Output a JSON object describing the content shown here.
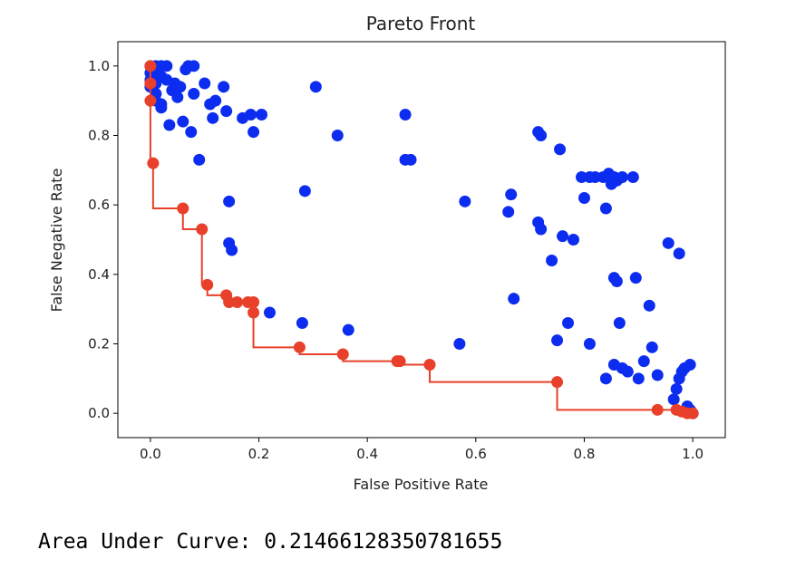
{
  "chart_data": {
    "type": "scatter",
    "title": "Pareto Front",
    "xlabel": "False Positive Rate",
    "ylabel": "False Negative Rate",
    "xlim": [
      -0.06,
      1.06
    ],
    "ylim": [
      -0.07,
      1.07
    ],
    "xticks": [
      0.0,
      0.2,
      0.4,
      0.6,
      0.8,
      1.0
    ],
    "yticks": [
      0.0,
      0.2,
      0.4,
      0.6,
      0.8,
      1.0
    ],
    "xtick_labels": [
      "0.0",
      "0.2",
      "0.4",
      "0.6",
      "0.8",
      "1.0"
    ],
    "ytick_labels": [
      "0.0",
      "0.2",
      "0.4",
      "0.6",
      "0.8",
      "1.0"
    ],
    "grid": false,
    "series": [
      {
        "color": "#0c2df0",
        "kind": "scatter",
        "points": [
          [
            0.0,
            1.0
          ],
          [
            0.0,
            0.98
          ],
          [
            0.0,
            0.96
          ],
          [
            0.0,
            0.94
          ],
          [
            0.01,
            1.0
          ],
          [
            0.01,
            0.98
          ],
          [
            0.01,
            0.95
          ],
          [
            0.01,
            0.92
          ],
          [
            0.01,
            0.9
          ],
          [
            0.02,
            1.0
          ],
          [
            0.02,
            0.97
          ],
          [
            0.02,
            0.89
          ],
          [
            0.02,
            0.88
          ],
          [
            0.03,
            1.0
          ],
          [
            0.03,
            0.96
          ],
          [
            0.035,
            0.83
          ],
          [
            0.04,
            0.93
          ],
          [
            0.045,
            0.95
          ],
          [
            0.05,
            0.91
          ],
          [
            0.055,
            0.94
          ],
          [
            0.06,
            0.84
          ],
          [
            0.065,
            0.99
          ],
          [
            0.07,
            1.0
          ],
          [
            0.075,
            0.81
          ],
          [
            0.08,
            1.0
          ],
          [
            0.08,
            0.92
          ],
          [
            0.09,
            0.73
          ],
          [
            0.1,
            0.95
          ],
          [
            0.11,
            0.89
          ],
          [
            0.115,
            0.85
          ],
          [
            0.12,
            0.9
          ],
          [
            0.135,
            0.94
          ],
          [
            0.14,
            0.87
          ],
          [
            0.145,
            0.61
          ],
          [
            0.145,
            0.49
          ],
          [
            0.15,
            0.47
          ],
          [
            0.17,
            0.85
          ],
          [
            0.185,
            0.86
          ],
          [
            0.19,
            0.81
          ],
          [
            0.205,
            0.86
          ],
          [
            0.22,
            0.29
          ],
          [
            0.28,
            0.26
          ],
          [
            0.285,
            0.64
          ],
          [
            0.305,
            0.94
          ],
          [
            0.345,
            0.8
          ],
          [
            0.365,
            0.24
          ],
          [
            0.47,
            0.86
          ],
          [
            0.47,
            0.73
          ],
          [
            0.48,
            0.73
          ],
          [
            0.57,
            0.2
          ],
          [
            0.58,
            0.61
          ],
          [
            0.66,
            0.58
          ],
          [
            0.665,
            0.63
          ],
          [
            0.67,
            0.33
          ],
          [
            0.715,
            0.81
          ],
          [
            0.715,
            0.55
          ],
          [
            0.72,
            0.53
          ],
          [
            0.72,
            0.8
          ],
          [
            0.74,
            0.44
          ],
          [
            0.75,
            0.21
          ],
          [
            0.755,
            0.76
          ],
          [
            0.76,
            0.51
          ],
          [
            0.77,
            0.26
          ],
          [
            0.78,
            0.5
          ],
          [
            0.795,
            0.68
          ],
          [
            0.8,
            0.62
          ],
          [
            0.81,
            0.68
          ],
          [
            0.81,
            0.2
          ],
          [
            0.82,
            0.68
          ],
          [
            0.835,
            0.68
          ],
          [
            0.84,
            0.59
          ],
          [
            0.84,
            0.1
          ],
          [
            0.845,
            0.69
          ],
          [
            0.85,
            0.68
          ],
          [
            0.85,
            0.66
          ],
          [
            0.855,
            0.68
          ],
          [
            0.855,
            0.39
          ],
          [
            0.855,
            0.14
          ],
          [
            0.86,
            0.67
          ],
          [
            0.86,
            0.38
          ],
          [
            0.865,
            0.26
          ],
          [
            0.87,
            0.68
          ],
          [
            0.87,
            0.13
          ],
          [
            0.88,
            0.12
          ],
          [
            0.89,
            0.68
          ],
          [
            0.895,
            0.39
          ],
          [
            0.9,
            0.1
          ],
          [
            0.91,
            0.15
          ],
          [
            0.92,
            0.31
          ],
          [
            0.925,
            0.19
          ],
          [
            0.935,
            0.11
          ],
          [
            0.955,
            0.49
          ],
          [
            0.965,
            0.04
          ],
          [
            0.97,
            0.07
          ],
          [
            0.975,
            0.46
          ],
          [
            0.975,
            0.1
          ],
          [
            0.98,
            0.12
          ],
          [
            0.985,
            0.13
          ],
          [
            0.99,
            0.02
          ],
          [
            0.995,
            0.01
          ],
          [
            0.995,
            0.14
          ],
          [
            1.0,
            0.0
          ]
        ]
      },
      {
        "color": "#e8402a",
        "kind": "pareto-step",
        "points": [
          [
            0.0,
            1.0
          ],
          [
            0.0,
            0.95
          ],
          [
            0.0,
            0.9
          ],
          [
            0.005,
            0.72
          ],
          [
            0.06,
            0.59
          ],
          [
            0.095,
            0.53
          ],
          [
            0.105,
            0.37
          ],
          [
            0.14,
            0.34
          ],
          [
            0.145,
            0.32
          ],
          [
            0.16,
            0.32
          ],
          [
            0.18,
            0.32
          ],
          [
            0.19,
            0.32
          ],
          [
            0.19,
            0.29
          ],
          [
            0.275,
            0.19
          ],
          [
            0.355,
            0.17
          ],
          [
            0.455,
            0.15
          ],
          [
            0.46,
            0.15
          ],
          [
            0.515,
            0.14
          ],
          [
            0.75,
            0.09
          ],
          [
            0.935,
            0.01
          ],
          [
            0.97,
            0.01
          ],
          [
            0.98,
            0.005
          ],
          [
            0.99,
            0.0
          ],
          [
            1.0,
            0.0
          ]
        ]
      }
    ]
  },
  "result": {
    "label": "Area Under Curve:",
    "value": "0.21466128350781655"
  }
}
